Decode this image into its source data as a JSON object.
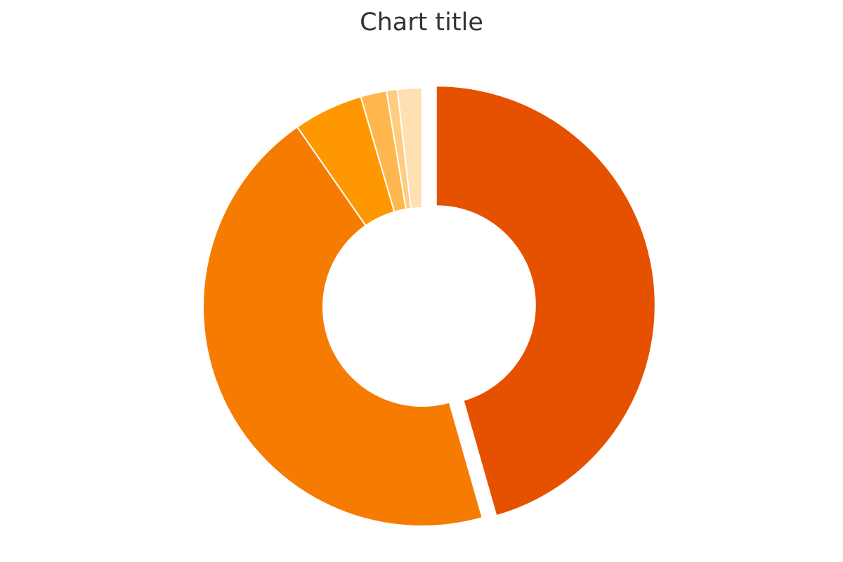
{
  "chart_data": {
    "type": "pie",
    "donut": true,
    "title": "Chart title",
    "legend": "none",
    "slices": [
      {
        "value": 45.3,
        "color": "#e65100",
        "exploded": true
      },
      {
        "value": 44.5,
        "color": "#f57c00",
        "exploded": false
      },
      {
        "value": 5.1,
        "color": "#ff9800",
        "exploded": false
      },
      {
        "value": 1.9,
        "color": "#ffb74d",
        "exploded": false
      },
      {
        "value": 0.8,
        "color": "#ffcc80",
        "exploded": false
      },
      {
        "value": 1.8,
        "color": "#ffe0b2",
        "exploded": false
      }
    ]
  }
}
